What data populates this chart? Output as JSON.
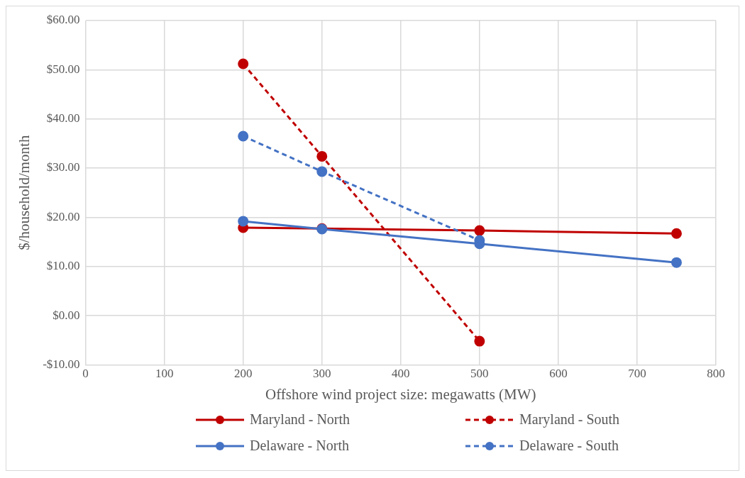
{
  "chart_data": {
    "type": "line",
    "xlabel": "Offshore wind project size: megawatts (MW)",
    "ylabel": "$/household/month",
    "x": [
      200,
      300,
      500,
      750
    ],
    "series": [
      {
        "name": "Maryland - North",
        "color": "#c00000",
        "values": [
          17.9,
          17.7,
          17.3,
          16.7
        ],
        "line_style": "solid"
      },
      {
        "name": "Maryland - South",
        "color": "#c00000",
        "x": [
          200,
          300,
          500
        ],
        "values": [
          51.2,
          32.4,
          -5.2
        ],
        "line_style": "dashed"
      },
      {
        "name": "Delaware - North",
        "color": "#4472c4",
        "values": [
          19.2,
          17.6,
          14.6,
          10.8
        ],
        "line_style": "solid"
      },
      {
        "name": "Delaware - South",
        "color": "#4472c4",
        "x": [
          200,
          300,
          500
        ],
        "values": [
          36.5,
          29.3,
          15.3
        ],
        "line_style": "dashed"
      }
    ],
    "xlim": [
      0,
      800
    ],
    "xticks": [
      0,
      100,
      200,
      300,
      400,
      500,
      600,
      700,
      800
    ],
    "ylim": [
      -10,
      60
    ],
    "yticks": [
      {
        "value": -10,
        "label": "-$10.00"
      },
      {
        "value": 0,
        "label": "$0.00"
      },
      {
        "value": 10,
        "label": "$10.00"
      },
      {
        "value": 20,
        "label": "$20.00"
      },
      {
        "value": 30,
        "label": "$30.00"
      },
      {
        "value": 40,
        "label": "$40.00"
      },
      {
        "value": 50,
        "label": "$50.00"
      },
      {
        "value": 60,
        "label": "$60.00"
      }
    ],
    "grid": true,
    "legend": "bottom",
    "marker": "circle"
  }
}
